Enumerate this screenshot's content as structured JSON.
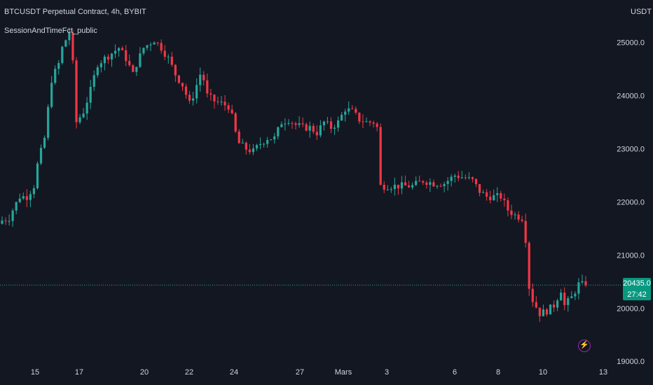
{
  "header": {
    "title": "BTCUSDT Perpetual Contract, 4h, BYBIT",
    "indicator": "SessionAndTimeFct_public",
    "currency": "USDT"
  },
  "last_price": {
    "value": "20435.0",
    "countdown": "27:42"
  },
  "icons": {
    "alert": "lightning-bolt-icon"
  },
  "colors": {
    "background": "#131722",
    "up": "#26a69a",
    "down": "#f23645",
    "text": "#d1d4dc",
    "tag": "#089981"
  },
  "chart_data": {
    "type": "candlestick",
    "x_ticks": [
      "15",
      "17",
      "20",
      "22",
      "24",
      "27",
      "Mars",
      "3",
      "6",
      "8",
      "10",
      "13"
    ],
    "y_ticks": [
      "19000.0",
      "20000.0",
      "21000.0",
      "22000.0",
      "23000.0",
      "24000.0",
      "25000.0"
    ],
    "ylim": [
      18950,
      25800
    ],
    "current_price": 20435.0,
    "close_path": [
      {
        "t": 0,
        "p": 21650
      },
      {
        "t": 2,
        "p": 21700
      },
      {
        "t": 3,
        "p": 21850
      },
      {
        "t": 5,
        "p": 22100
      },
      {
        "t": 7,
        "p": 22100
      },
      {
        "t": 9,
        "p": 22300
      },
      {
        "t": 10,
        "p": 22700
      },
      {
        "t": 12,
        "p": 23200
      },
      {
        "t": 14,
        "p": 24300
      },
      {
        "t": 16,
        "p": 24600
      },
      {
        "t": 17,
        "p": 24900
      },
      {
        "t": 19,
        "p": 25200
      },
      {
        "t": 20,
        "p": 24600
      },
      {
        "t": 21,
        "p": 23500
      },
      {
        "t": 23,
        "p": 23700
      },
      {
        "t": 25,
        "p": 24100
      },
      {
        "t": 27,
        "p": 24600
      },
      {
        "t": 29,
        "p": 24700
      },
      {
        "t": 33,
        "p": 24900
      },
      {
        "t": 35,
        "p": 24700
      },
      {
        "t": 37,
        "p": 24400
      },
      {
        "t": 38,
        "p": 24600
      },
      {
        "t": 40,
        "p": 24900
      },
      {
        "t": 43,
        "p": 25050
      },
      {
        "t": 45,
        "p": 24900
      },
      {
        "t": 47,
        "p": 24700
      },
      {
        "t": 49,
        "p": 24400
      },
      {
        "t": 51,
        "p": 24200
      },
      {
        "t": 53,
        "p": 23850
      },
      {
        "t": 54,
        "p": 24000
      },
      {
        "t": 56,
        "p": 24400
      },
      {
        "t": 57,
        "p": 24300
      },
      {
        "t": 58,
        "p": 24000
      },
      {
        "t": 60,
        "p": 23900
      },
      {
        "t": 62,
        "p": 23850
      },
      {
        "t": 64,
        "p": 23800
      },
      {
        "t": 65,
        "p": 23600
      },
      {
        "t": 66,
        "p": 23300
      },
      {
        "t": 67,
        "p": 23100
      },
      {
        "t": 69,
        "p": 23000
      },
      {
        "t": 71,
        "p": 22950
      },
      {
        "t": 73,
        "p": 23100
      },
      {
        "t": 75,
        "p": 23200
      },
      {
        "t": 77,
        "p": 23200
      },
      {
        "t": 79,
        "p": 23500
      },
      {
        "t": 81,
        "p": 23550
      },
      {
        "t": 83,
        "p": 23450
      },
      {
        "t": 85,
        "p": 23400
      },
      {
        "t": 87,
        "p": 23400
      },
      {
        "t": 89,
        "p": 23300
      },
      {
        "t": 91,
        "p": 23500
      },
      {
        "t": 93,
        "p": 23400
      },
      {
        "t": 95,
        "p": 23500
      },
      {
        "t": 97,
        "p": 23750
      },
      {
        "t": 99,
        "p": 23700
      },
      {
        "t": 101,
        "p": 23550
      },
      {
        "t": 103,
        "p": 23500
      },
      {
        "t": 105,
        "p": 23500
      },
      {
        "t": 106,
        "p": 23400
      },
      {
        "t": 107,
        "p": 22300
      },
      {
        "t": 109,
        "p": 22300
      },
      {
        "t": 113,
        "p": 22300
      },
      {
        "t": 116,
        "p": 22300
      },
      {
        "t": 119,
        "p": 22400
      },
      {
        "t": 122,
        "p": 22350
      },
      {
        "t": 125,
        "p": 22350
      },
      {
        "t": 128,
        "p": 22500
      },
      {
        "t": 131,
        "p": 22450
      },
      {
        "t": 133,
        "p": 22400
      },
      {
        "t": 135,
        "p": 22200
      },
      {
        "t": 137,
        "p": 22100
      },
      {
        "t": 139,
        "p": 22100
      },
      {
        "t": 141,
        "p": 22100
      },
      {
        "t": 143,
        "p": 21850
      },
      {
        "t": 145,
        "p": 21750
      },
      {
        "t": 147,
        "p": 21700
      },
      {
        "t": 148,
        "p": 21300
      },
      {
        "t": 149,
        "p": 20400
      },
      {
        "t": 150,
        "p": 20150
      },
      {
        "t": 152,
        "p": 19900
      },
      {
        "t": 154,
        "p": 19950
      },
      {
        "t": 156,
        "p": 20050
      },
      {
        "t": 158,
        "p": 20350
      },
      {
        "t": 159,
        "p": 20050
      },
      {
        "t": 161,
        "p": 20200
      },
      {
        "t": 163,
        "p": 20450
      },
      {
        "t": 165,
        "p": 20435
      }
    ]
  }
}
